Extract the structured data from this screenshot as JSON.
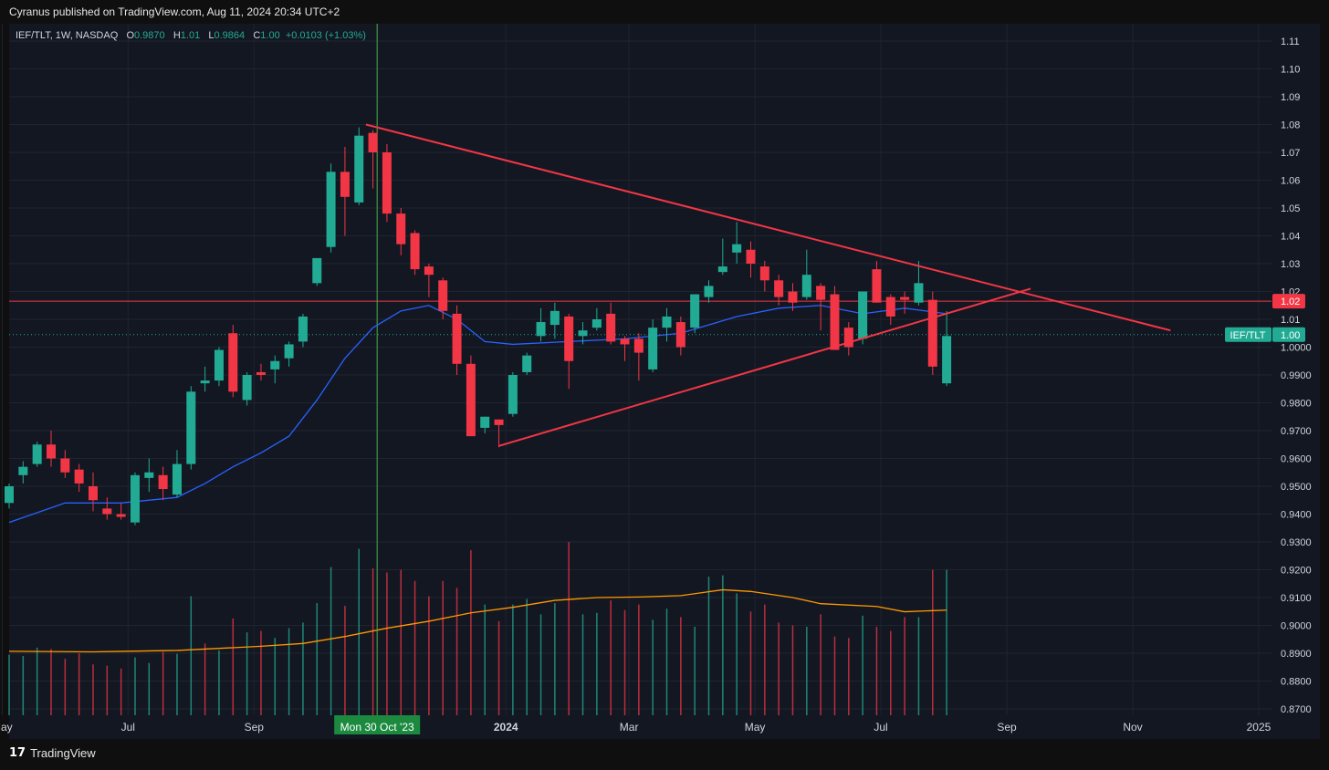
{
  "publish_line": "Cyranus published on TradingView.com, Aug 11, 2024 20:34 UTC+2",
  "brand": "TradingView",
  "legend": {
    "symbol": "IEF/TLT, 1W, NASDAQ",
    "o_label": "O",
    "o_value": "0.9870",
    "h_label": "H",
    "h_value": "1.01",
    "l_label": "L",
    "l_value": "0.9864",
    "c_label": "C",
    "c_value": "1.00",
    "change": "+0.0103 (+1.03%)"
  },
  "colors": {
    "background": "#131722",
    "grid": "#1f2430",
    "up": "#22ab94",
    "down": "#f23645",
    "ma": "#2962ff",
    "volume_ma": "#ff9800",
    "trendline": "#f23645",
    "crosshair": "#4caf50"
  },
  "crosshair_label": "Mon 30 Oct '23",
  "price_tags": {
    "level_value": "1.02",
    "symbol_name": "IEF/TLT",
    "last_value": "1.00"
  },
  "chart_data": {
    "type": "candlestick",
    "title": "IEF/TLT, 1W, NASDAQ",
    "x_ticks": [
      "May",
      "Jul",
      "Sep",
      "Mon 30 Oct '23",
      "2024",
      "Mar",
      "May",
      "Jul",
      "Sep",
      "Nov",
      "2025"
    ],
    "y_ticks": [
      "1.11",
      "1.10",
      "1.09",
      "1.08",
      "1.07",
      "1.06",
      "1.05",
      "1.04",
      "1.03",
      "1.02",
      "1.01",
      "1.0000",
      "0.9900",
      "0.9800",
      "0.9700",
      "0.9600",
      "0.9500",
      "0.9400",
      "0.9300",
      "0.9200",
      "0.9100",
      "0.9000",
      "0.8900",
      "0.8800",
      "0.8700"
    ],
    "ylim": [
      0.866,
      1.114
    ],
    "grid": true,
    "candles": [
      {
        "w": 0,
        "o": 0.944,
        "h": 0.951,
        "l": 0.942,
        "c": 0.95
      },
      {
        "w": 1,
        "o": 0.954,
        "h": 0.959,
        "l": 0.951,
        "c": 0.957
      },
      {
        "w": 2,
        "o": 0.958,
        "h": 0.966,
        "l": 0.957,
        "c": 0.965
      },
      {
        "w": 3,
        "o": 0.965,
        "h": 0.97,
        "l": 0.957,
        "c": 0.96
      },
      {
        "w": 4,
        "o": 0.96,
        "h": 0.963,
        "l": 0.953,
        "c": 0.955
      },
      {
        "w": 5,
        "o": 0.956,
        "h": 0.958,
        "l": 0.948,
        "c": 0.951
      },
      {
        "w": 6,
        "o": 0.95,
        "h": 0.955,
        "l": 0.941,
        "c": 0.945
      },
      {
        "w": 7,
        "o": 0.942,
        "h": 0.946,
        "l": 0.938,
        "c": 0.94
      },
      {
        "w": 8,
        "o": 0.94,
        "h": 0.944,
        "l": 0.938,
        "c": 0.939
      },
      {
        "w": 9,
        "o": 0.937,
        "h": 0.955,
        "l": 0.936,
        "c": 0.954
      },
      {
        "w": 10,
        "o": 0.953,
        "h": 0.96,
        "l": 0.948,
        "c": 0.955
      },
      {
        "w": 11,
        "o": 0.954,
        "h": 0.957,
        "l": 0.945,
        "c": 0.949
      },
      {
        "w": 12,
        "o": 0.947,
        "h": 0.963,
        "l": 0.946,
        "c": 0.958
      },
      {
        "w": 13,
        "o": 0.958,
        "h": 0.986,
        "l": 0.956,
        "c": 0.984
      },
      {
        "w": 14,
        "o": 0.987,
        "h": 0.993,
        "l": 0.984,
        "c": 0.988
      },
      {
        "w": 15,
        "o": 0.988,
        "h": 1.0,
        "l": 0.986,
        "c": 0.999
      },
      {
        "w": 16,
        "o": 1.005,
        "h": 1.008,
        "l": 0.982,
        "c": 0.984
      },
      {
        "w": 17,
        "o": 0.981,
        "h": 0.991,
        "l": 0.979,
        "c": 0.99
      },
      {
        "w": 18,
        "o": 0.991,
        "h": 0.994,
        "l": 0.988,
        "c": 0.99
      },
      {
        "w": 19,
        "o": 0.992,
        "h": 0.997,
        "l": 0.987,
        "c": 0.995
      },
      {
        "w": 20,
        "o": 0.996,
        "h": 1.002,
        "l": 0.993,
        "c": 1.001
      },
      {
        "w": 21,
        "o": 1.002,
        "h": 1.012,
        "l": 1.0,
        "c": 1.011
      },
      {
        "w": 22,
        "o": 1.023,
        "h": 1.031,
        "l": 1.022,
        "c": 1.032
      },
      {
        "w": 23,
        "o": 1.036,
        "h": 1.066,
        "l": 1.034,
        "c": 1.063
      },
      {
        "w": 24,
        "o": 1.063,
        "h": 1.072,
        "l": 1.04,
        "c": 1.054
      },
      {
        "w": 25,
        "o": 1.052,
        "h": 1.079,
        "l": 1.051,
        "c": 1.076
      },
      {
        "w": 26,
        "o": 1.077,
        "h": 1.078,
        "l": 1.057,
        "c": 1.07
      },
      {
        "w": 27,
        "o": 1.07,
        "h": 1.073,
        "l": 1.045,
        "c": 1.048
      },
      {
        "w": 28,
        "o": 1.048,
        "h": 1.05,
        "l": 1.033,
        "c": 1.037
      },
      {
        "w": 29,
        "o": 1.041,
        "h": 1.042,
        "l": 1.026,
        "c": 1.028
      },
      {
        "w": 30,
        "o": 1.029,
        "h": 1.03,
        "l": 1.018,
        "c": 1.026
      },
      {
        "w": 31,
        "o": 1.024,
        "h": 1.025,
        "l": 1.01,
        "c": 1.013
      },
      {
        "w": 32,
        "o": 1.012,
        "h": 1.015,
        "l": 0.99,
        "c": 0.994
      },
      {
        "w": 33,
        "o": 0.994,
        "h": 0.997,
        "l": 0.968,
        "c": 0.968
      },
      {
        "w": 34,
        "o": 0.971,
        "h": 0.975,
        "l": 0.969,
        "c": 0.975
      },
      {
        "w": 35,
        "o": 0.974,
        "h": 0.974,
        "l": 0.964,
        "c": 0.972
      },
      {
        "w": 36,
        "o": 0.976,
        "h": 0.991,
        "l": 0.975,
        "c": 0.99
      },
      {
        "w": 37,
        "o": 0.991,
        "h": 0.998,
        "l": 0.99,
        "c": 0.997
      },
      {
        "w": 38,
        "o": 1.004,
        "h": 1.014,
        "l": 1.002,
        "c": 1.009
      },
      {
        "w": 39,
        "o": 1.008,
        "h": 1.016,
        "l": 1.003,
        "c": 1.013
      },
      {
        "w": 40,
        "o": 1.011,
        "h": 1.012,
        "l": 0.985,
        "c": 0.995
      },
      {
        "w": 41,
        "o": 1.004,
        "h": 1.009,
        "l": 1.001,
        "c": 1.006
      },
      {
        "w": 42,
        "o": 1.007,
        "h": 1.014,
        "l": 1.006,
        "c": 1.01
      },
      {
        "w": 43,
        "o": 1.012,
        "h": 1.016,
        "l": 1.001,
        "c": 1.002
      },
      {
        "w": 44,
        "o": 1.003,
        "h": 1.004,
        "l": 0.995,
        "c": 1.001
      },
      {
        "w": 45,
        "o": 1.003,
        "h": 1.005,
        "l": 0.988,
        "c": 0.998
      },
      {
        "w": 46,
        "o": 0.992,
        "h": 1.01,
        "l": 0.991,
        "c": 1.007
      },
      {
        "w": 47,
        "o": 1.007,
        "h": 1.014,
        "l": 1.002,
        "c": 1.011
      },
      {
        "w": 48,
        "o": 1.009,
        "h": 1.011,
        "l": 0.997,
        "c": 1.0
      },
      {
        "w": 49,
        "o": 1.007,
        "h": 1.019,
        "l": 1.005,
        "c": 1.019
      },
      {
        "w": 50,
        "o": 1.018,
        "h": 1.024,
        "l": 1.016,
        "c": 1.022
      },
      {
        "w": 51,
        "o": 1.027,
        "h": 1.039,
        "l": 1.026,
        "c": 1.029
      },
      {
        "w": 52,
        "o": 1.034,
        "h": 1.045,
        "l": 1.03,
        "c": 1.037
      },
      {
        "w": 53,
        "o": 1.035,
        "h": 1.038,
        "l": 1.025,
        "c": 1.03
      },
      {
        "w": 54,
        "o": 1.029,
        "h": 1.031,
        "l": 1.02,
        "c": 1.024
      },
      {
        "w": 55,
        "o": 1.024,
        "h": 1.026,
        "l": 1.015,
        "c": 1.018
      },
      {
        "w": 56,
        "o": 1.02,
        "h": 1.023,
        "l": 1.013,
        "c": 1.016
      },
      {
        "w": 57,
        "o": 1.018,
        "h": 1.035,
        "l": 1.017,
        "c": 1.026
      },
      {
        "w": 58,
        "o": 1.022,
        "h": 1.023,
        "l": 1.006,
        "c": 1.017
      },
      {
        "w": 59,
        "o": 1.019,
        "h": 1.022,
        "l": 1.0,
        "c": 0.999
      },
      {
        "w": 60,
        "o": 1.007,
        "h": 1.009,
        "l": 0.997,
        "c": 1.0
      },
      {
        "w": 61,
        "o": 1.003,
        "h": 1.018,
        "l": 1.001,
        "c": 1.02
      },
      {
        "w": 62,
        "o": 1.028,
        "h": 1.031,
        "l": 1.016,
        "c": 1.016
      },
      {
        "w": 63,
        "o": 1.018,
        "h": 1.019,
        "l": 1.008,
        "c": 1.011
      },
      {
        "w": 64,
        "o": 1.018,
        "h": 1.02,
        "l": 1.012,
        "c": 1.017
      },
      {
        "w": 65,
        "o": 1.016,
        "h": 1.031,
        "l": 1.015,
        "c": 1.023
      },
      {
        "w": 66,
        "o": 1.017,
        "h": 1.02,
        "l": 0.99,
        "c": 0.993
      },
      {
        "w": 67,
        "o": 0.987,
        "h": 1.013,
        "l": 0.986,
        "c": 1.004
      }
    ],
    "ma_series": [
      {
        "w": 0,
        "v": 0.937
      },
      {
        "w": 4,
        "v": 0.944
      },
      {
        "w": 8,
        "v": 0.944
      },
      {
        "w": 12,
        "v": 0.946
      },
      {
        "w": 14,
        "v": 0.951
      },
      {
        "w": 16,
        "v": 0.957
      },
      {
        "w": 18,
        "v": 0.962
      },
      {
        "w": 20,
        "v": 0.968
      },
      {
        "w": 22,
        "v": 0.981
      },
      {
        "w": 24,
        "v": 0.996
      },
      {
        "w": 26,
        "v": 1.007
      },
      {
        "w": 28,
        "v": 1.013
      },
      {
        "w": 30,
        "v": 1.015
      },
      {
        "w": 32,
        "v": 1.01
      },
      {
        "w": 34,
        "v": 1.002
      },
      {
        "w": 36,
        "v": 1.001
      },
      {
        "w": 40,
        "v": 1.002
      },
      {
        "w": 44,
        "v": 1.003
      },
      {
        "w": 48,
        "v": 1.005
      },
      {
        "w": 52,
        "v": 1.011
      },
      {
        "w": 55,
        "v": 1.014
      },
      {
        "w": 58,
        "v": 1.015
      },
      {
        "w": 61,
        "v": 1.012
      },
      {
        "w": 64,
        "v": 1.014
      },
      {
        "w": 67,
        "v": 1.012
      }
    ],
    "volume_ma_series": [
      {
        "w": 0,
        "v": 0.8907
      },
      {
        "w": 6,
        "v": 0.8905
      },
      {
        "w": 12,
        "v": 0.891
      },
      {
        "w": 18,
        "v": 0.8925
      },
      {
        "w": 21,
        "v": 0.8935
      },
      {
        "w": 24,
        "v": 0.896
      },
      {
        "w": 27,
        "v": 0.899
      },
      {
        "w": 30,
        "v": 0.9015
      },
      {
        "w": 33,
        "v": 0.9045
      },
      {
        "w": 36,
        "v": 0.9065
      },
      {
        "w": 39,
        "v": 0.909
      },
      {
        "w": 42,
        "v": 0.91
      },
      {
        "w": 45,
        "v": 0.9102
      },
      {
        "w": 48,
        "v": 0.9107
      },
      {
        "w": 51,
        "v": 0.9128
      },
      {
        "w": 53,
        "v": 0.9122
      },
      {
        "w": 56,
        "v": 0.91
      },
      {
        "w": 58,
        "v": 0.9078
      },
      {
        "w": 62,
        "v": 0.9068
      },
      {
        "w": 64,
        "v": 0.9049
      },
      {
        "w": 67,
        "v": 0.9055
      }
    ],
    "volumes": [
      0.8895,
      0.889,
      0.892,
      0.8915,
      0.888,
      0.89,
      0.886,
      0.8855,
      0.8845,
      0.8885,
      0.8865,
      0.8905,
      0.8898,
      0.9105,
      0.8935,
      0.891,
      0.9025,
      0.8975,
      0.898,
      0.8955,
      0.899,
      0.901,
      0.908,
      0.921,
      0.907,
      0.9275,
      0.9205,
      0.919,
      0.92,
      0.916,
      0.9105,
      0.916,
      0.9135,
      0.927,
      0.9075,
      0.9015,
      0.9075,
      0.9095,
      0.904,
      0.908,
      0.93,
      0.904,
      0.9045,
      0.909,
      0.9055,
      0.9075,
      0.902,
      0.906,
      0.903,
      0.8995,
      0.9175,
      0.918,
      0.9115,
      0.905,
      0.9075,
      0.901,
      0.9,
      0.8995,
      0.904,
      0.896,
      0.8955,
      0.9035,
      0.8995,
      0.898,
      0.903,
      0.903,
      0.92,
      0.92
    ],
    "volume_up": [
      true,
      true,
      true,
      false,
      false,
      false,
      false,
      false,
      false,
      true,
      true,
      false,
      true,
      true,
      false,
      true,
      false,
      true,
      false,
      true,
      true,
      true,
      true,
      true,
      false,
      true,
      false,
      false,
      false,
      false,
      false,
      false,
      false,
      false,
      true,
      false,
      true,
      true,
      true,
      true,
      false,
      true,
      true,
      false,
      false,
      false,
      true,
      true,
      false,
      true,
      true,
      true,
      true,
      false,
      false,
      false,
      false,
      true,
      false,
      false,
      false,
      true,
      false,
      false,
      false,
      true,
      false,
      true
    ],
    "horizontal_level": 1.0165,
    "last_price": 1.0045,
    "trendlines": [
      {
        "name": "descending",
        "from": {
          "w": 25.5,
          "v": 1.08
        },
        "to": {
          "w": 83,
          "v": 1.006
        }
      },
      {
        "name": "ascending",
        "from": {
          "w": 35,
          "v": 0.9645
        },
        "to": {
          "w": 73,
          "v": 1.021
        }
      }
    ],
    "crosshair_week": 26.3,
    "x_tick_weeks": [
      -0.5,
      8.5,
      17.5,
      26.3,
      35.5,
      44.3,
      53.3,
      62.3,
      71.3,
      80.3,
      89.3
    ]
  }
}
